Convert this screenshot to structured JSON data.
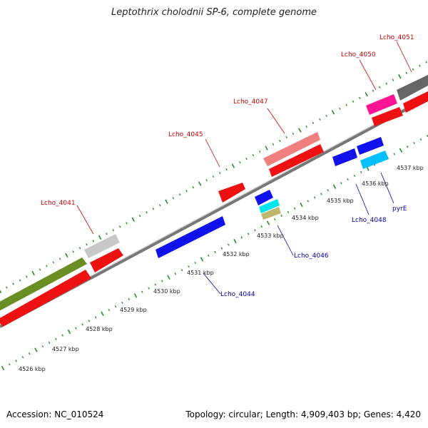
{
  "title": "Leptothrix cholodnii SP-6, complete genome",
  "footer": {
    "accession": "Accession: NC_010524",
    "summary": "Topology: circular; Length: 4,909,403 bp; Genes: 4,420"
  },
  "colors": {
    "forward_label": "#cc0000",
    "reverse_label": "#0000aa",
    "tick": "#2a8a2a",
    "backbone": "#888888"
  },
  "ruler_labels": [
    "4526 kbp",
    "4527 kbp",
    "4528 kbp",
    "4529 kbp",
    "4530 kbp",
    "4531 kbp",
    "4532 kbp",
    "4533 kbp",
    "4534 kbp",
    "4535 kbp",
    "4536 kbp",
    "4537 kbp"
  ],
  "gene_labels": [
    {
      "text": "Lcho_4041",
      "strand": "forward"
    },
    {
      "text": "Lcho_4045",
      "strand": "forward"
    },
    {
      "text": "Lcho_4047",
      "strand": "forward"
    },
    {
      "text": "Lcho_4050",
      "strand": "forward"
    },
    {
      "text": "Lcho_4051",
      "strand": "forward"
    },
    {
      "text": "Lcho_4044",
      "strand": "reverse"
    },
    {
      "text": "Lcho_4046",
      "strand": "reverse"
    },
    {
      "text": "Lcho_4048",
      "strand": "reverse"
    },
    {
      "text": "pyrE",
      "strand": "reverse"
    }
  ]
}
